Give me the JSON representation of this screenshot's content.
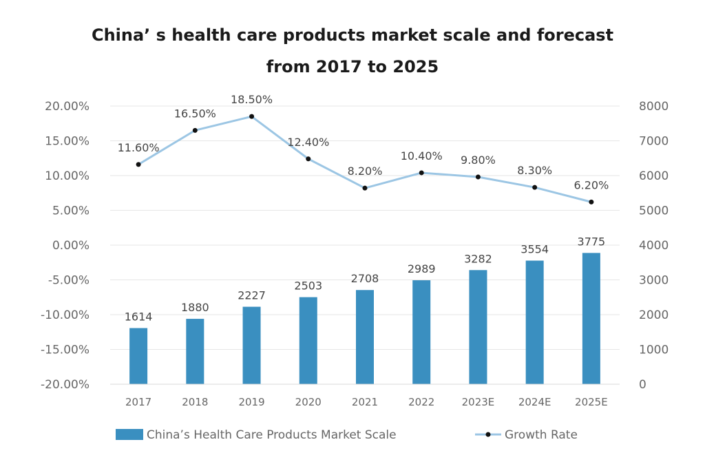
{
  "chart_data": {
    "type": "bar+line",
    "title_lines": [
      "China’ s health care products market scale and forecast",
      "from 2017 to 2025"
    ],
    "categories": [
      "2017",
      "2018",
      "2019",
      "2020",
      "2021",
      "2022",
      "2023E",
      "2024E",
      "2025E"
    ],
    "series": [
      {
        "name": "China’s Health Care Products Market Scale",
        "type": "bar",
        "axis": "right",
        "values": [
          1614,
          1880,
          2227,
          2503,
          2708,
          2989,
          3282,
          3554,
          3775
        ],
        "labels": [
          "1614",
          "1880",
          "2227",
          "2503",
          "2708",
          "2989",
          "3282",
          "3554",
          "3775"
        ],
        "color": "#3a8fc0"
      },
      {
        "name": "Growth Rate",
        "type": "line",
        "axis": "left",
        "values": [
          11.6,
          16.5,
          18.5,
          12.4,
          8.2,
          10.4,
          9.8,
          8.3,
          6.2
        ],
        "labels": [
          "11.60%",
          "16.50%",
          "18.50%",
          "12.40%",
          "8.20%",
          "10.40%",
          "9.80%",
          "8.30%",
          "6.20%"
        ],
        "color": "#9cc6e4",
        "marker_color": "#111111"
      }
    ],
    "y_left": {
      "lim": [
        -20,
        20
      ],
      "ticks": [
        20,
        15,
        10,
        5,
        0,
        -5,
        -10,
        -15,
        -20
      ],
      "tick_labels": [
        "20.00%",
        "15.00%",
        "10.00%",
        "5.00%",
        "0.00%",
        "-5.00%",
        "-10.00%",
        "-15.00%",
        "-20.00%"
      ]
    },
    "y_right": {
      "lim": [
        0,
        8000
      ],
      "ticks": [
        8000,
        7000,
        6000,
        5000,
        4000,
        3000,
        2000,
        1000,
        0
      ],
      "tick_labels": [
        "8000",
        "7000",
        "6000",
        "5000",
        "4000",
        "3000",
        "2000",
        "1000",
        "0"
      ]
    },
    "grid": true,
    "grid_color": "#e6e6e6",
    "legend_position": "bottom"
  }
}
